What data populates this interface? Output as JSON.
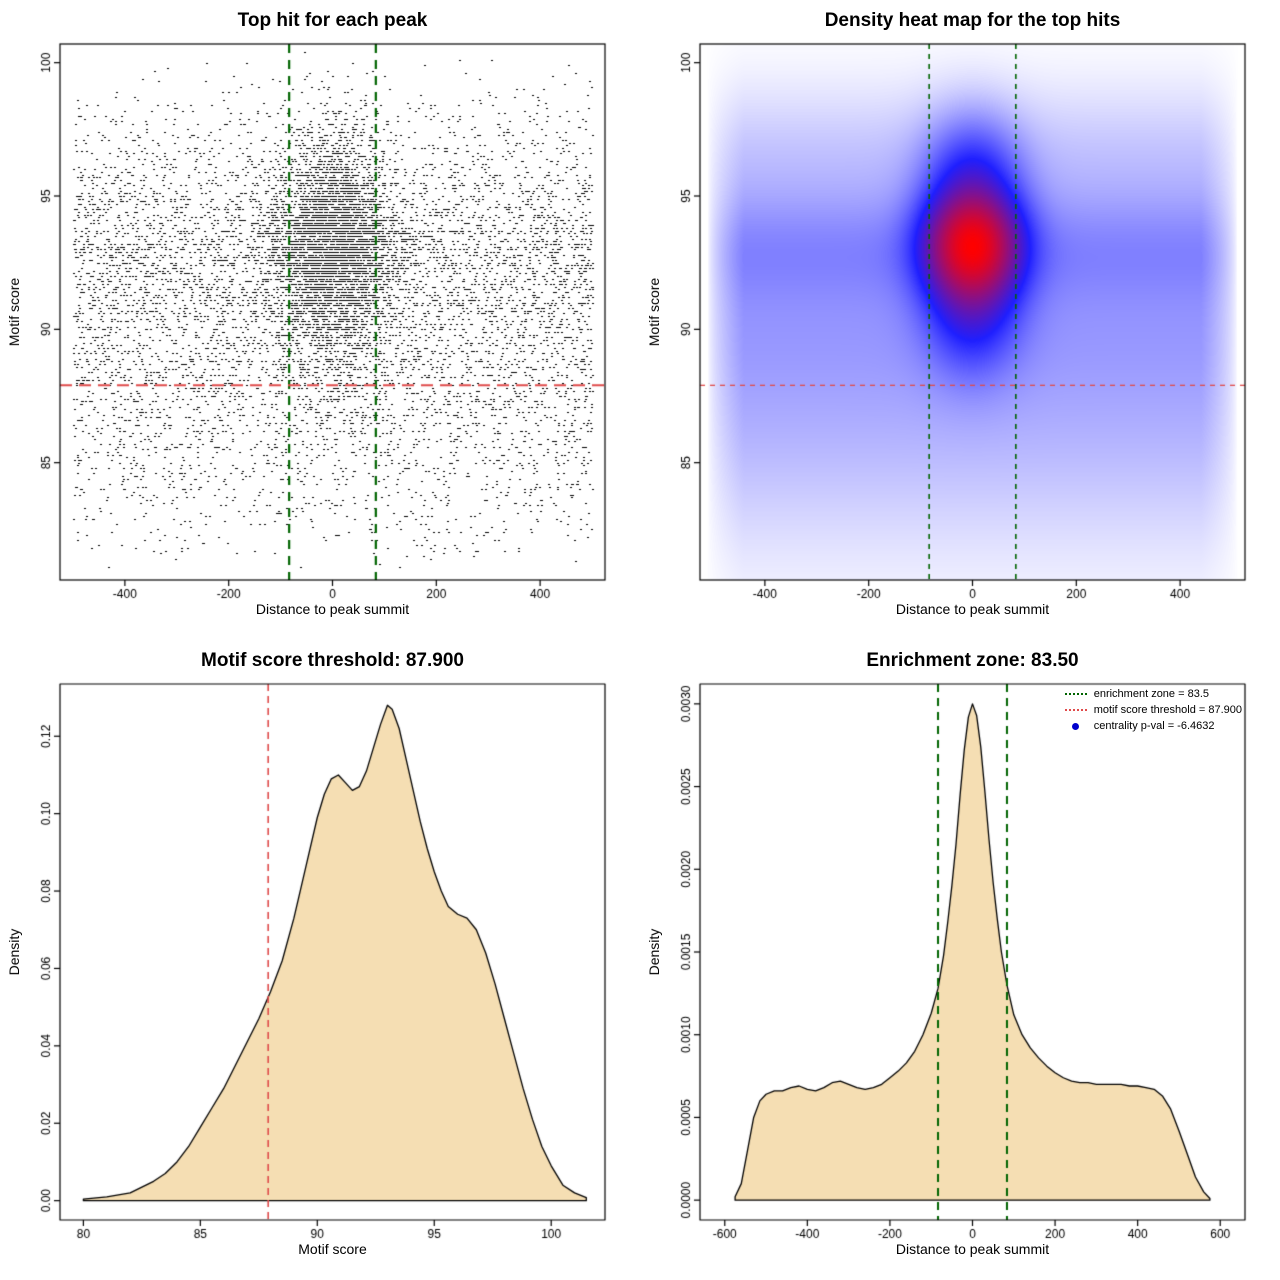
{
  "page": {
    "background": "#ffffff"
  },
  "chart_data": [
    {
      "id": "top-hit-scatter",
      "type": "scatter",
      "title": "Top hit for each peak",
      "xlabel": "Distance to peak summit",
      "ylabel": "Motif score",
      "xlim": [
        -525,
        525
      ],
      "ylim": [
        80.6,
        100.7
      ],
      "xticks": {
        "values": [
          -400,
          -200,
          0,
          200,
          400
        ],
        "labels": [
          "-400",
          "-200",
          "0",
          "200",
          "400"
        ]
      },
      "yticks": {
        "values": [
          85,
          90,
          95,
          100
        ],
        "labels": [
          "85",
          "90",
          "95",
          "100"
        ]
      },
      "n_points": 11000,
      "seed": 7,
      "point_color": "#000000",
      "clip_y": [
        81,
        100.4
      ],
      "center": {
        "frac": 0.38,
        "x_sd": 58,
        "y_components": [
          {
            "m": 93.2,
            "s": 1.25,
            "w": 0.5
          },
          {
            "m": 91.3,
            "s": 1.8,
            "w": 0.3
          },
          {
            "m": 95.6,
            "s": 1.5,
            "w": 0.2
          }
        ]
      },
      "background": {
        "x_range": [
          -500,
          500
        ],
        "y_components": [
          {
            "m": 93,
            "s": 1.4,
            "w": 0.28
          },
          {
            "m": 90.3,
            "s": 1.9,
            "w": 0.25
          },
          {
            "m": 96,
            "s": 1.7,
            "w": 0.15
          },
          {
            "m": 87.5,
            "s": 2.3,
            "w": 0.2
          },
          {
            "m": 85,
            "s": 2.6,
            "w": 0.12
          }
        ]
      },
      "vlines": [
        {
          "x": -83.5,
          "color": "#006400",
          "width": 2.2,
          "dash": [
            9,
            7
          ]
        },
        {
          "x": 83.5,
          "color": "#006400",
          "width": 2.2,
          "dash": [
            9,
            7
          ]
        }
      ],
      "hlines": [
        {
          "y": 87.9,
          "color": "#e04b4b",
          "width": 2,
          "dash": [
            12,
            7
          ]
        }
      ]
    },
    {
      "id": "top-hit-heatmap",
      "type": "density2d",
      "title": "Density heat map for the top hits",
      "xlabel": "Distance to peak summit",
      "ylabel": "Motif score",
      "xlim": [
        -525,
        525
      ],
      "ylim": [
        80.6,
        100.7
      ],
      "xticks": {
        "values": [
          -400,
          -200,
          0,
          200,
          400
        ],
        "labels": [
          "-400",
          "-200",
          "0",
          "200",
          "400"
        ]
      },
      "yticks": {
        "values": [
          85,
          90,
          95,
          100
        ],
        "labels": [
          "85",
          "90",
          "95",
          "100"
        ]
      },
      "gamma": 0.45,
      "t_mid": 0.55,
      "colors": {
        "low": "#ffffff",
        "mid": "#1f1fff",
        "high": "#ff0000"
      },
      "center": {
        "frac": 0.38,
        "x_sd": 60,
        "y_components": [
          {
            "m": 93.2,
            "s": 1.25,
            "w": 0.5
          },
          {
            "m": 91.3,
            "s": 1.8,
            "w": 0.3
          },
          {
            "m": 95.6,
            "s": 1.5,
            "w": 0.2
          }
        ]
      },
      "background": {
        "x_range": [
          -500,
          500
        ],
        "y_components": [
          {
            "m": 93,
            "s": 1.4,
            "w": 0.28
          },
          {
            "m": 90.3,
            "s": 1.9,
            "w": 0.25
          },
          {
            "m": 96,
            "s": 1.7,
            "w": 0.15
          },
          {
            "m": 87.5,
            "s": 2.3,
            "w": 0.2
          },
          {
            "m": 85,
            "s": 2.6,
            "w": 0.12
          }
        ]
      },
      "vlines": [
        {
          "x": -83.5,
          "color": "#006400",
          "width": 1.6,
          "dash": [
            5,
            5
          ]
        },
        {
          "x": 83.5,
          "color": "#006400",
          "width": 1.6,
          "dash": [
            5,
            5
          ]
        }
      ],
      "hlines": [
        {
          "y": 87.9,
          "color": "#e04b4b",
          "width": 1.3,
          "dash": [
            5,
            5
          ]
        }
      ]
    },
    {
      "id": "motif-score-density",
      "type": "density",
      "title": "Motif score threshold: 87.900",
      "xlabel": "Motif score",
      "ylabel": "Density",
      "xlim": [
        79,
        102.3
      ],
      "ylim": [
        -0.005,
        0.1335
      ],
      "xticks": {
        "values": [
          80,
          85,
          90,
          95,
          100
        ],
        "labels": [
          "80",
          "85",
          "90",
          "95",
          "100"
        ]
      },
      "yticks": {
        "values": [
          0,
          0.02,
          0.04,
          0.06,
          0.08,
          0.1,
          0.12
        ],
        "labels": [
          "0.00",
          "0.02",
          "0.04",
          "0.06",
          "0.08",
          "0.10",
          "0.12"
        ]
      },
      "fill": "#f5deb3",
      "stroke": "#000000",
      "curve": {
        "x": [
          80,
          81,
          82,
          83,
          83.5,
          84,
          84.5,
          85,
          85.5,
          86,
          86.5,
          87,
          87.5,
          88,
          88.5,
          89,
          89.5,
          90,
          90.3,
          90.6,
          90.9,
          91.2,
          91.5,
          91.8,
          92.1,
          92.4,
          92.7,
          93,
          93.2,
          93.5,
          93.8,
          94.1,
          94.4,
          94.7,
          95,
          95.3,
          95.6,
          96,
          96.4,
          96.8,
          97.2,
          97.6,
          98,
          98.4,
          98.8,
          99.2,
          99.6,
          100,
          100.5,
          101,
          101.5
        ],
        "y": [
          0.0004,
          0.001,
          0.002,
          0.005,
          0.007,
          0.01,
          0.014,
          0.019,
          0.024,
          0.029,
          0.035,
          0.041,
          0.047,
          0.054,
          0.062,
          0.073,
          0.086,
          0.099,
          0.105,
          0.109,
          0.11,
          0.108,
          0.106,
          0.107,
          0.111,
          0.117,
          0.123,
          0.128,
          0.127,
          0.122,
          0.114,
          0.106,
          0.098,
          0.091,
          0.085,
          0.08,
          0.076,
          0.074,
          0.073,
          0.07,
          0.064,
          0.056,
          0.047,
          0.038,
          0.029,
          0.021,
          0.014,
          0.009,
          0.004,
          0.002,
          0.0008
        ]
      },
      "vlines": [
        {
          "x": 87.9,
          "color": "#e04b4b",
          "width": 1.6,
          "dash": [
            7,
            5
          ]
        }
      ],
      "hlines": []
    },
    {
      "id": "distance-density",
      "type": "density",
      "title": "Enrichment zone: 83.50",
      "xlabel": "Distance to peak summit",
      "ylabel": "Density",
      "xlim": [
        -660,
        660
      ],
      "ylim": [
        -0.00012,
        0.00312
      ],
      "xticks": {
        "values": [
          -600,
          -400,
          -200,
          0,
          200,
          400,
          600
        ],
        "labels": [
          "-600",
          "-400",
          "-200",
          "0",
          "200",
          "400",
          "600"
        ]
      },
      "yticks": {
        "values": [
          0,
          0.0005,
          0.001,
          0.0015,
          0.002,
          0.0025,
          0.003
        ],
        "labels": [
          "0.0000",
          "0.0005",
          "0.0010",
          "0.0015",
          "0.0020",
          "0.0025",
          "0.0030"
        ]
      },
      "fill": "#f5deb3",
      "stroke": "#000000",
      "curve": {
        "x": [
          -575,
          -560,
          -545,
          -530,
          -515,
          -500,
          -480,
          -460,
          -440,
          -420,
          -400,
          -380,
          -360,
          -340,
          -320,
          -300,
          -280,
          -260,
          -240,
          -220,
          -200,
          -180,
          -160,
          -140,
          -120,
          -100,
          -83.5,
          -70,
          -60,
          -50,
          -40,
          -30,
          -20,
          -10,
          0,
          10,
          20,
          30,
          40,
          50,
          60,
          70,
          83.5,
          100,
          120,
          140,
          160,
          180,
          200,
          220,
          240,
          260,
          280,
          300,
          320,
          340,
          360,
          380,
          400,
          420,
          440,
          460,
          480,
          500,
          520,
          540,
          560,
          575
        ],
        "y": [
          2e-05,
          0.0001,
          0.0003,
          0.0005,
          0.0006,
          0.00064,
          0.00066,
          0.00066,
          0.00068,
          0.00069,
          0.00067,
          0.00066,
          0.00068,
          0.00071,
          0.00072,
          0.0007,
          0.00068,
          0.00067,
          0.00068,
          0.0007,
          0.00074,
          0.00078,
          0.00083,
          0.0009,
          0.001,
          0.00113,
          0.00128,
          0.00148,
          0.00168,
          0.0019,
          0.00215,
          0.00245,
          0.00272,
          0.00292,
          0.003,
          0.00293,
          0.00274,
          0.00247,
          0.00218,
          0.00192,
          0.0017,
          0.0015,
          0.0013,
          0.00112,
          0.001,
          0.00092,
          0.00086,
          0.00081,
          0.00077,
          0.00074,
          0.00072,
          0.00071,
          0.00071,
          0.0007,
          0.0007,
          0.0007,
          0.0007,
          0.00069,
          0.00069,
          0.00068,
          0.00067,
          0.00063,
          0.00055,
          0.00042,
          0.00028,
          0.00014,
          5e-05,
          1e-05
        ]
      },
      "vlines": [
        {
          "x": -83.5,
          "color": "#006400",
          "width": 2,
          "dash": [
            8,
            6
          ]
        },
        {
          "x": 83.5,
          "color": "#006400",
          "width": 2,
          "dash": [
            8,
            6
          ]
        }
      ],
      "hlines": [],
      "legend": {
        "items": [
          {
            "label": "enrichment zone = 83.5",
            "color": "#006400",
            "type": "dotted-line"
          },
          {
            "label": "motif score threshold = 87.900",
            "color": "#e04b4b",
            "type": "dotted-line"
          },
          {
            "label": "centrality p-val = -6.4632",
            "color": "#0000cd",
            "type": "point"
          }
        ]
      }
    }
  ]
}
